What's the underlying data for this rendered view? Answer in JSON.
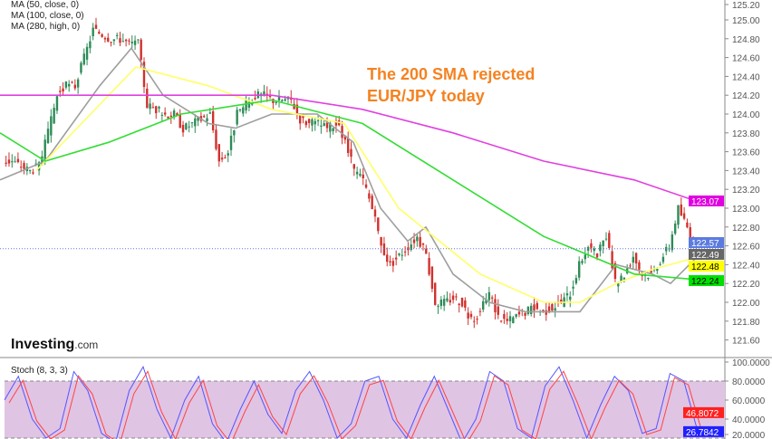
{
  "legend": [
    "MA (50, close, 0)",
    "MA (100, close, 0)",
    "MA (280, high, 0)"
  ],
  "annotation": [
    "The 200 SMA rejected",
    "EUR/JPY today"
  ],
  "logo": {
    "name": "Investing",
    ".com": ".com"
  },
  "stoch_label": "Stoch (8, 3, 3)",
  "colors": {
    "up": "#2e8b57",
    "down": "#d0312d",
    "ma50": "#9e9e9e",
    "ma100": "#ffff66",
    "ma280": "#e040e0",
    "ma_green": "#33dd33",
    "annotation": "#f58220",
    "stoch_fill": "#e0c4e4"
  },
  "chart_data": [
    {
      "type": "candlestick",
      "symbol": "EUR/JPY",
      "ylim": [
        121.5,
        125.2
      ],
      "yticks": [
        "125.20",
        "125.00",
        "124.80",
        "124.60",
        "124.40",
        "124.20",
        "124.00",
        "123.80",
        "123.60",
        "123.40",
        "123.20",
        "123.00",
        "122.80",
        "122.60",
        "122.40",
        "122.20",
        "122.00",
        "121.80",
        "121.60"
      ],
      "closes": [
        123.5,
        123.5,
        123.45,
        123.4,
        123.45,
        123.8,
        124.2,
        124.3,
        124.3,
        124.6,
        124.9,
        124.85,
        124.8,
        124.8,
        124.75,
        124.75,
        124.1,
        124.05,
        124.0,
        124.0,
        123.85,
        123.9,
        123.95,
        124.0,
        123.5,
        123.6,
        124.0,
        124.1,
        124.2,
        124.2,
        124.15,
        124.15,
        124.15,
        123.95,
        123.9,
        123.9,
        123.85,
        123.9,
        123.7,
        123.4,
        123.3,
        123.0,
        122.6,
        122.4,
        122.5,
        122.6,
        122.7,
        122.5,
        122.0,
        122.0,
        122.05,
        122.0,
        121.8,
        121.9,
        122.1,
        121.85,
        121.8,
        121.85,
        121.9,
        121.95,
        121.9,
        121.95,
        122.0,
        122.1,
        122.4,
        122.6,
        122.5,
        122.7,
        122.2,
        122.3,
        122.5,
        122.3,
        122.3,
        122.45,
        122.6,
        123.0,
        122.8,
        122.57
      ],
      "ma_lines": [
        {
          "name": "MA (50, close, 0)",
          "color": "#9e9e9e",
          "points": [
            [
              0,
              123.3
            ],
            [
              50,
              123.5
            ],
            [
              110,
              124.3
            ],
            [
              145,
              124.7
            ],
            [
              180,
              124.2
            ],
            [
              230,
              123.9
            ],
            [
              260,
              123.85
            ],
            [
              300,
              124.0
            ],
            [
              350,
              124.0
            ],
            [
              390,
              123.7
            ],
            [
              420,
              123.0
            ],
            [
              450,
              122.65
            ],
            [
              470,
              122.8
            ],
            [
              500,
              122.3
            ],
            [
              540,
              122.0
            ],
            [
              580,
              121.9
            ],
            [
              640,
              121.9
            ],
            [
              680,
              122.4
            ],
            [
              720,
              122.3
            ],
            [
              740,
              122.2
            ],
            [
              770,
              122.49
            ]
          ]
        },
        {
          "name": "MA (100, close, 0)",
          "color": "#ffff66",
          "points": [
            [
              40,
              123.4
            ],
            [
              100,
              124.0
            ],
            [
              150,
              124.5
            ],
            [
              230,
              124.3
            ],
            [
              300,
              124.05
            ],
            [
              380,
              123.9
            ],
            [
              440,
              123.0
            ],
            [
              530,
              122.3
            ],
            [
              600,
              122.0
            ],
            [
              640,
              122.0
            ],
            [
              680,
              122.2
            ],
            [
              720,
              122.35
            ],
            [
              770,
              122.48
            ]
          ]
        },
        {
          "name": "MA (280, high, 0)",
          "color": "#e040e0",
          "points": [
            [
              0,
              124.2
            ],
            [
              150,
              124.2
            ],
            [
              300,
              124.2
            ],
            [
              400,
              124.05
            ],
            [
              500,
              123.8
            ],
            [
              600,
              123.5
            ],
            [
              700,
              123.3
            ],
            [
              770,
              123.07
            ]
          ]
        },
        {
          "color": "#33dd33",
          "points": [
            [
              0,
              123.8
            ],
            [
              50,
              123.5
            ],
            [
              120,
              123.7
            ],
            [
              200,
              124.0
            ],
            [
              300,
              124.15
            ],
            [
              400,
              123.9
            ],
            [
              500,
              123.3
            ],
            [
              600,
              122.7
            ],
            [
              700,
              122.3
            ],
            [
              770,
              122.24
            ]
          ]
        }
      ],
      "last_price": "122.57",
      "price_labels": [
        {
          "value": "123.07",
          "color": "#e000e0"
        },
        {
          "value": "122.57",
          "color": "#5b7be0"
        },
        {
          "value": "122.49",
          "color": "#666666"
        },
        {
          "value": "122.48",
          "color": "#ffff00"
        },
        {
          "value": "122.24",
          "color": "#00e000"
        }
      ]
    },
    {
      "type": "line",
      "title": "Stoch (8, 3, 3)",
      "ylim": [
        20,
        100
      ],
      "yticks": [
        "100.0000",
        "80.0000",
        "60.0000",
        "40.0000",
        "20.0000"
      ],
      "band": [
        20,
        80
      ],
      "k": [
        60,
        85,
        40,
        20,
        30,
        90,
        70,
        25,
        15,
        70,
        95,
        50,
        20,
        60,
        85,
        35,
        15,
        50,
        80,
        45,
        25,
        70,
        90,
        60,
        20,
        35,
        80,
        85,
        40,
        20,
        55,
        85,
        50,
        15,
        40,
        90,
        80,
        30,
        20,
        75,
        95,
        60,
        20,
        55,
        85,
        70,
        25,
        30,
        88,
        80,
        27
      ],
      "labels": [
        {
          "value": "46.8072",
          "color": "#ff2020"
        },
        {
          "value": "26.7842",
          "color": "#2020ff"
        }
      ]
    }
  ]
}
